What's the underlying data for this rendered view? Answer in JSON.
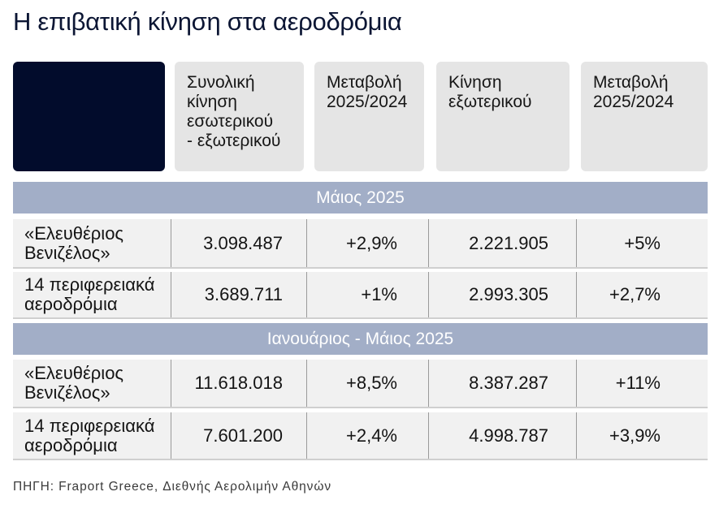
{
  "colors": {
    "title": "#0c1634",
    "corner": "#020c2c",
    "header_bg": "#e5e5e5",
    "band": "#a2aec7",
    "row_bg": "#f1f1f1",
    "divider": "#9a9a9a"
  },
  "chart_data": {
    "type": "table",
    "title": "Η επιβατική κίνηση στα αεροδρόμια",
    "headers": [
      {
        "lines": [
          "Συνολική",
          "κίνηση",
          "εσωτερικού",
          "- εξωτερικού"
        ]
      },
      {
        "lines": [
          "Μεταβολή",
          "2025/2024"
        ]
      },
      {
        "lines": [
          "Κίνηση",
          "εξωτερικού"
        ]
      },
      {
        "lines": [
          "Μεταβολή",
          "2025/2024"
        ]
      }
    ],
    "sections": [
      {
        "label": "Μάιος 2025",
        "rows": [
          {
            "airport": [
              "«Ελευθέριος",
              "Βενιζέλος»"
            ],
            "total": "3.098.487",
            "total_change": "+2,9%",
            "international": "2.221.905",
            "international_change": "+5%"
          },
          {
            "airport": [
              "14 περιφερειακά",
              "αεροδρόμια"
            ],
            "total": "3.689.711",
            "total_change": "+1%",
            "international": "2.993.305",
            "international_change": "+2,7%"
          }
        ]
      },
      {
        "label": "Ιανουάριος - Μάιος 2025",
        "rows": [
          {
            "airport": [
              "«Ελευθέριος",
              "Βενιζέλος»"
            ],
            "total": "11.618.018",
            "total_change": "+8,5%",
            "international": "8.387.287",
            "international_change": "+11%"
          },
          {
            "airport": [
              "14 περιφερειακά",
              "αεροδρόμια"
            ],
            "total": "7.601.200",
            "total_change": "+2,4%",
            "international": "4.998.787",
            "international_change": "+3,9%"
          }
        ]
      }
    ],
    "source": "ΠΗΓΗ: Fraport Greece, Διεθνής Αερολιμήν Αθηνών"
  }
}
